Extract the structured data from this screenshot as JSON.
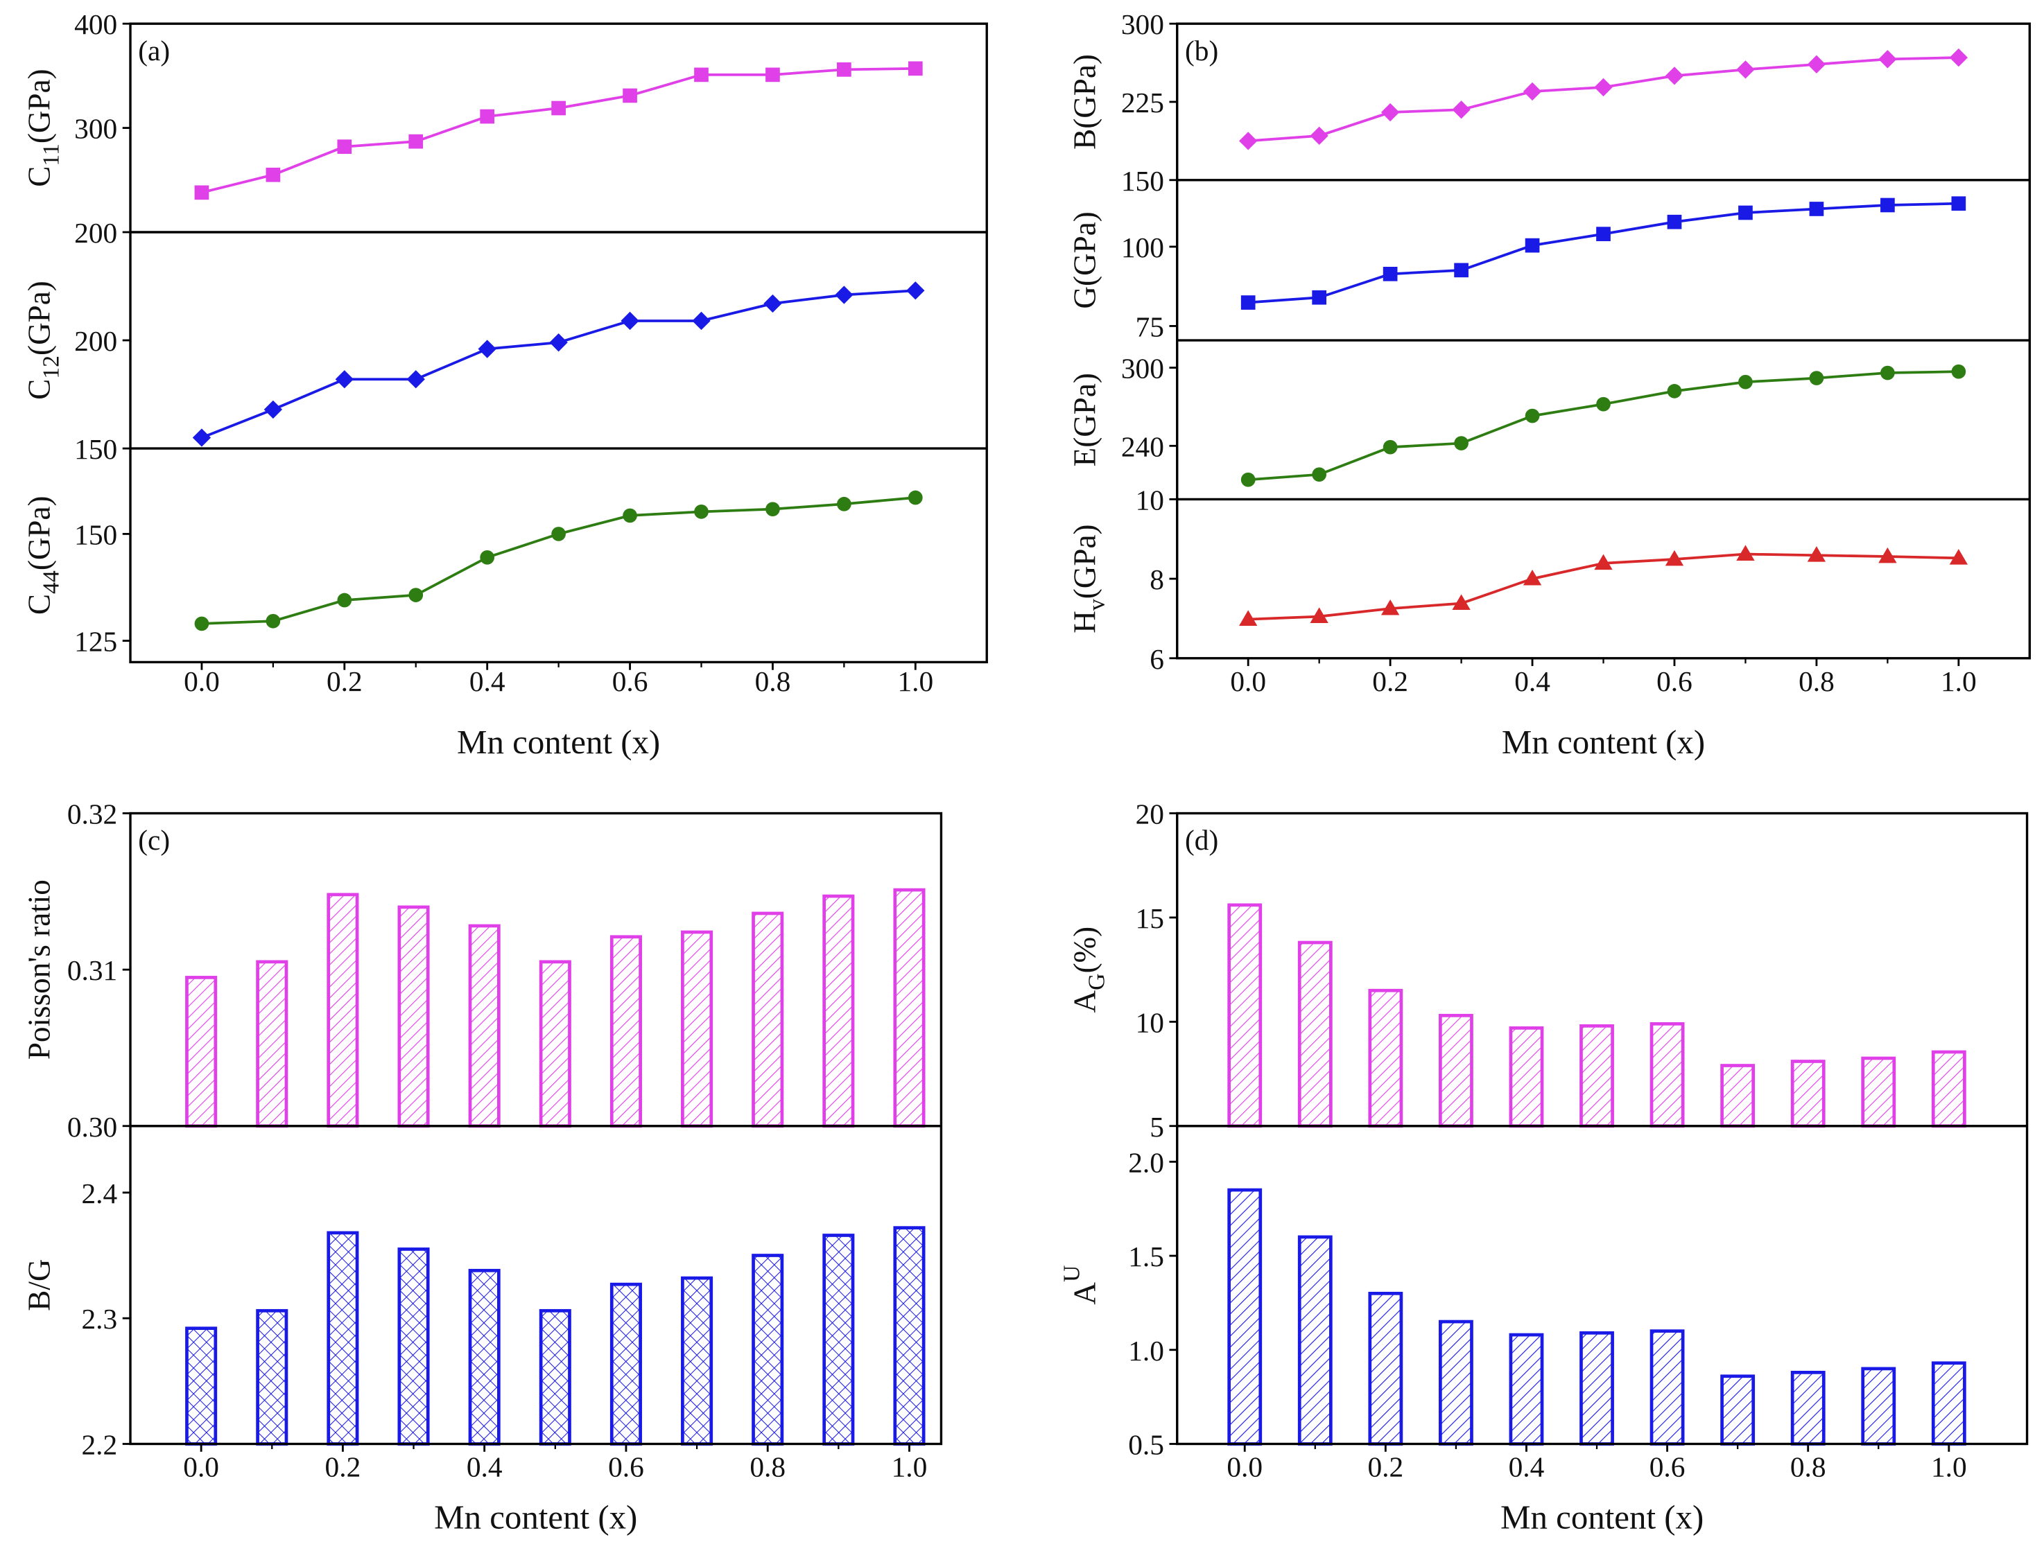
{
  "chart_data": [
    {
      "panel": "(a)",
      "type": "line",
      "xlabel": "Mn content (x)",
      "xticks": [
        "0.0",
        "0.2",
        "0.4",
        "0.6",
        "0.8",
        "1.0"
      ],
      "xlim": [
        -0.1,
        1.1
      ],
      "x": [
        0.0,
        0.1,
        0.2,
        0.3,
        0.4,
        0.5,
        0.6,
        0.7,
        0.8,
        0.9,
        1.0
      ],
      "subplots": [
        {
          "ylabel": {
            "main": "C",
            "sub": "11",
            "sup": "",
            "rest": "(GPa)"
          },
          "ylim": [
            200,
            400
          ],
          "yticks": [
            200,
            300,
            400
          ],
          "color": "#e040e8",
          "marker": "square",
          "values": [
            238,
            255,
            282,
            287,
            311,
            319,
            331,
            351,
            351,
            356,
            357
          ]
        },
        {
          "ylabel": {
            "main": "C",
            "sub": "12",
            "sup": "",
            "rest": "(GPa)"
          },
          "ylim": [
            150,
            250
          ],
          "yticks": [
            150,
            200
          ],
          "color": "#1a1ae6",
          "marker": "diamond",
          "values": [
            155,
            168,
            182,
            182,
            196,
            199,
            209,
            209,
            217,
            221,
            223
          ]
        },
        {
          "ylabel": {
            "main": "C",
            "sub": "44",
            "sup": "",
            "rest": "(GPa)"
          },
          "ylim": [
            120,
            170
          ],
          "yticks": [
            125,
            150
          ],
          "color": "#2e7d12",
          "marker": "circle",
          "values": [
            129,
            129.6,
            134.5,
            135.7,
            144.5,
            150,
            154.3,
            155.2,
            155.8,
            157,
            158.5
          ]
        }
      ]
    },
    {
      "panel": "(b)",
      "type": "line",
      "xlabel": "Mn content (x)",
      "xticks": [
        "0.0",
        "0.2",
        "0.4",
        "0.6",
        "0.8",
        "1.0"
      ],
      "xlim": [
        -0.1,
        1.1
      ],
      "x": [
        0.0,
        0.1,
        0.2,
        0.3,
        0.4,
        0.5,
        0.6,
        0.7,
        0.8,
        0.9,
        1.0
      ],
      "subplots": [
        {
          "ylabel": {
            "main": "B",
            "sub": "",
            "sup": "",
            "rest": "(GPa)"
          },
          "ylim": [
            150,
            300
          ],
          "yticks": [
            150,
            225,
            300
          ],
          "color": "#e040e8",
          "marker": "diamond",
          "values": [
            187.5,
            192.5,
            215,
            217.5,
            235,
            239,
            250,
            256,
            261,
            266,
            267.5
          ]
        },
        {
          "ylabel": {
            "main": "G",
            "sub": "",
            "sup": "",
            "rest": "(GPa)"
          },
          "ylim": [
            70.5,
            121
          ],
          "yticks": [
            75,
            100
          ],
          "color": "#1a1ae6",
          "marker": "square",
          "values": [
            82.4,
            84,
            91.4,
            92.6,
            100.4,
            104,
            107.8,
            110.7,
            111.9,
            113.1,
            113.6
          ]
        },
        {
          "ylabel": {
            "main": "E",
            "sub": "",
            "sup": "",
            "rest": "(GPa)"
          },
          "ylim": [
            199,
            321
          ],
          "yticks": [
            240,
            300
          ],
          "color": "#2e7d12",
          "marker": "circle",
          "values": [
            214,
            218,
            239,
            242,
            263,
            272,
            282,
            289,
            292,
            296,
            297
          ]
        },
        {
          "ylabel": {
            "main": "H",
            "sub": "v",
            "sup": "",
            "rest": "(GPa)"
          },
          "ylim": [
            6,
            10
          ],
          "yticks": [
            6,
            8,
            10
          ],
          "color": "#d8282a",
          "marker": "triangle",
          "values": [
            6.98,
            7.05,
            7.25,
            7.38,
            8.0,
            8.39,
            8.49,
            8.62,
            8.59,
            8.56,
            8.52
          ]
        }
      ]
    },
    {
      "panel": "(c)",
      "type": "bar",
      "xlabel": "Mn content (x)",
      "xticks": [
        "0.0",
        "0.2",
        "0.4",
        "0.6",
        "0.8",
        "1.0"
      ],
      "xlim": [
        -0.1,
        1.045
      ],
      "x": [
        0.0,
        0.1,
        0.2,
        0.3,
        0.4,
        0.5,
        0.6,
        0.7,
        0.8,
        0.9,
        1.0
      ],
      "subplots": [
        {
          "ylabel": {
            "main": "Poisson's ratio",
            "sub": "",
            "sup": "",
            "rest": ""
          },
          "ylim": [
            0.3,
            0.32
          ],
          "yticks": [
            "0.30",
            "0.31",
            "0.32"
          ],
          "color": "#e040e8",
          "hatch": "diagonal",
          "values": [
            0.3095,
            0.3105,
            0.3148,
            0.314,
            0.3128,
            0.3105,
            0.3121,
            0.3124,
            0.3136,
            0.3147,
            0.3151
          ]
        },
        {
          "ylabel": {
            "main": "B/G",
            "sub": "",
            "sup": "",
            "rest": ""
          },
          "ylim": [
            2.2,
            2.453
          ],
          "yticks": [
            "2.2",
            "2.3",
            "2.4"
          ],
          "color": "#1a1ae6",
          "hatch": "cross",
          "values": [
            2.292,
            2.306,
            2.368,
            2.355,
            2.338,
            2.306,
            2.327,
            2.332,
            2.35,
            2.366,
            2.372
          ]
        }
      ]
    },
    {
      "panel": "(d)",
      "type": "bar",
      "xlabel": "Mn content (x)",
      "xticks": [
        "0.0",
        "0.2",
        "0.4",
        "0.6",
        "0.8",
        "1.0"
      ],
      "xlim": [
        -0.096,
        1.111
      ],
      "x": [
        0.0,
        0.1,
        0.2,
        0.3,
        0.4,
        0.5,
        0.6,
        0.7,
        0.8,
        0.9,
        1.0
      ],
      "subplots": [
        {
          "ylabel": {
            "main": "A",
            "sub": "G",
            "sup": "",
            "rest": "(%)"
          },
          "ylim": [
            5,
            20
          ],
          "yticks": [
            "5",
            "10",
            "15",
            "20"
          ],
          "color": "#e040e8",
          "hatch": "diagonal",
          "values": [
            15.6,
            13.8,
            11.5,
            10.3,
            9.7,
            9.8,
            9.9,
            7.9,
            8.1,
            8.25,
            8.55
          ]
        },
        {
          "ylabel": {
            "main": "A",
            "sub": "",
            "sup": "U",
            "rest": ""
          },
          "ylim": [
            0.5,
            2.19
          ],
          "yticks": [
            "0.5",
            "1.0",
            "1.5",
            "2.0"
          ],
          "color": "#1a1ae6",
          "hatch": "diagonal",
          "values": [
            1.85,
            1.6,
            1.3,
            1.15,
            1.08,
            1.09,
            1.1,
            0.86,
            0.88,
            0.9,
            0.93
          ]
        }
      ]
    }
  ]
}
